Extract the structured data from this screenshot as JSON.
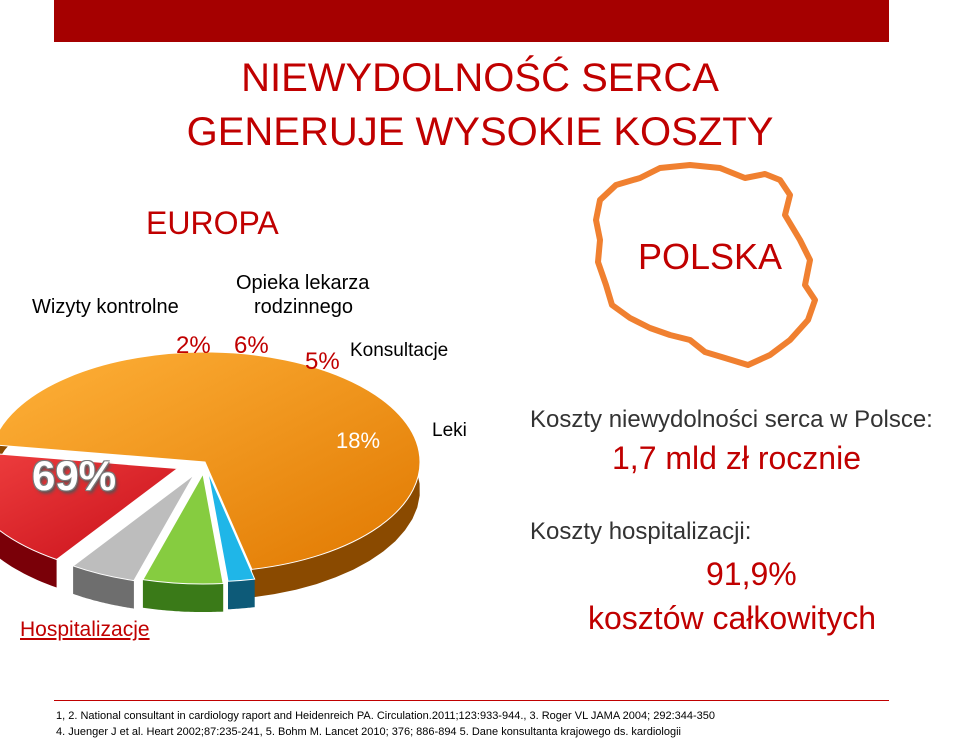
{
  "header": {
    "title_line1": "NIEWYDOLNOŚĆ SERCA",
    "title_line2": "GENERUJE WYSOKIE KOSZTY"
  },
  "europe": {
    "label": "EUROPA"
  },
  "chart_data": {
    "type": "pie",
    "title": "EUROPA",
    "slices": [
      {
        "label": "Hospitalizacje",
        "value": 69,
        "value_label": "69%",
        "color": "#f0900a"
      },
      {
        "label": "Wizyty kontrolne",
        "value": 2,
        "value_label": "2%",
        "color": "#1fb6e8"
      },
      {
        "label": "Opieka lekarza rodzinnego",
        "value": 6,
        "value_label": "6%",
        "color": "#86cc40"
      },
      {
        "label": "Konsultacje",
        "value": 5,
        "value_label": "5%",
        "color": "#bdbdbd"
      },
      {
        "label": "Leki",
        "value": 18,
        "value_label": "18%",
        "color": "#e2222a"
      }
    ],
    "label_lines": {
      "wizyty": "Wizyty kontrolne",
      "opieka1": "Opieka lekarza",
      "opieka2": "rodzinnego"
    },
    "style": "3d-exploded"
  },
  "poland": {
    "label": "POLSKA",
    "map_outline_color": "#f08030",
    "cost_label": "Koszty niewydolności serca w Polsce:",
    "cost_value": "1,7 mld zł rocznie",
    "hosp_label": "Koszty hospitalizacji:",
    "hosp_value": "91,9%",
    "hosp_value2": "kosztów całkowitych"
  },
  "references": {
    "line1": "1, 2. National consultant in cardiology raport and Heidenreich PA. Circulation.2011;123:933-944., 3. Roger VL JAMA 2004; 292:344-350",
    "line2": "4. Juenger J et al. Heart 2002;87:235-241, 5. Bohm M. Lancet 2010; 376; 886-894 5. Dane konsultanta krajowego ds. kardiologii"
  },
  "colors": {
    "accent": "#c00000",
    "top_bar": "#a50000"
  }
}
